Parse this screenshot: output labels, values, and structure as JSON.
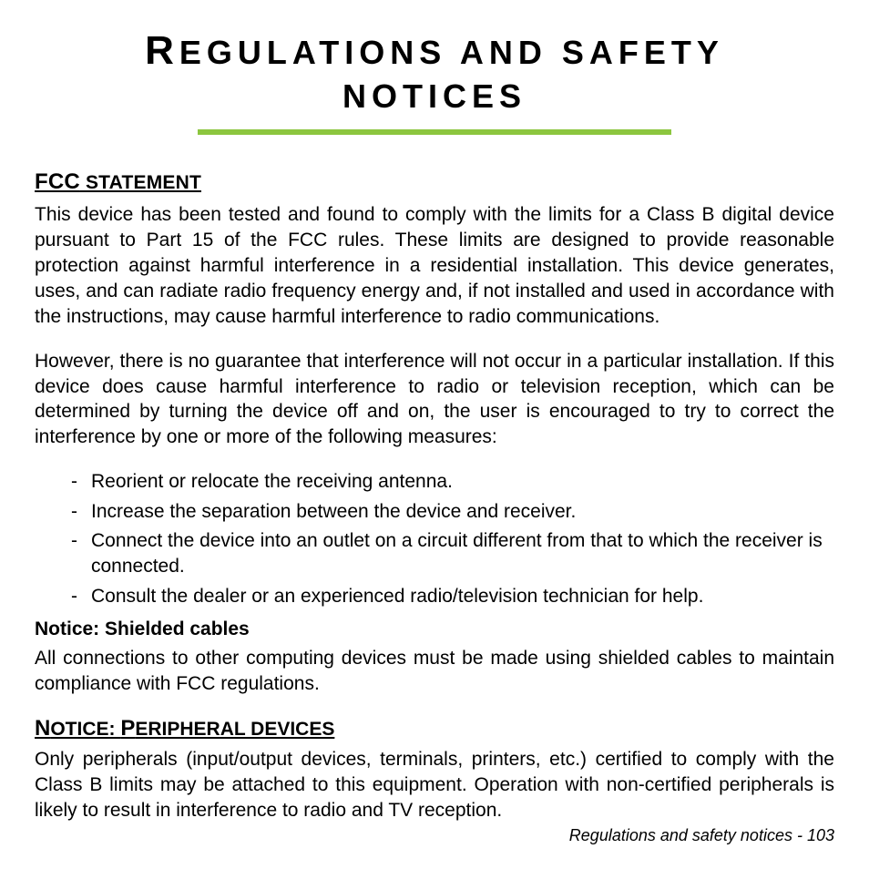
{
  "title_line1_first": "R",
  "title_line1_rest": "EGULATIONS AND SAFETY",
  "title_line2": "NOTICES",
  "accent_color": "#8cc63f",
  "fcc_heading_lead": "FCC",
  "fcc_heading_rest": " STATEMENT",
  "fcc_p1": "This device has been tested and found to comply with the limits for a Class B digital device pursuant to Part 15 of the FCC rules. These limits are designed to provide reasonable protection against harmful interference in a residential installation. This device generates, uses, and can radiate radio frequency energy and, if not installed and used in accordance with the instructions, may cause harmful interference to radio communications.",
  "fcc_p2": "However, there is no guarantee that interference will not occur in a particular installation. If this device does cause harmful interference to radio or television reception, which can be determined by turning the device off and on, the user is encouraged to try to correct the interference by one or more of the following measures:",
  "measures": [
    "Reorient or relocate the receiving antenna.",
    "Increase the separation between the device and receiver.",
    "Connect the device into an outlet on a circuit different from that to which the receiver is connected.",
    "Consult the dealer or an experienced radio/television technician for help."
  ],
  "shielded_heading": "Notice: Shielded cables",
  "shielded_p": "All connections to other computing devices must be made using shielded cables to maintain compliance with FCC regulations.",
  "peripheral_heading_lead1": "N",
  "peripheral_heading_rest1": "OTICE: ",
  "peripheral_heading_lead2": "P",
  "peripheral_heading_rest2": "ERIPHERAL DEVICES",
  "peripheral_p": "Only peripherals (input/output devices, terminals, printers, etc.) certified to comply with the Class B limits may be attached to this equipment. Operation with non-certified peripherals is likely to result in interference to radio and TV reception.",
  "footer_label": "Regulations and safety notices -",
  "footer_page": "  103"
}
